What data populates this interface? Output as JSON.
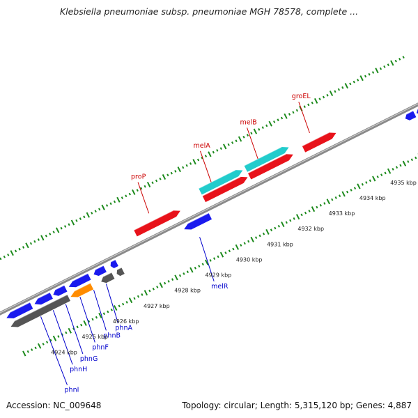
{
  "title": "Klebsiella pneumoniae subsp. pneumoniae MGH 78578, complete ...",
  "footer": {
    "accession": "Accession: NC_009648",
    "topology": "Topology: circular; Length: 5,315,120 bp; Genes: 4,887"
  },
  "colors": {
    "forward_gene": "#e8121a",
    "reverse_gene": "#1a1aee",
    "rna": "#22cccc",
    "highlight": "#ff8c00",
    "pseudo": "#555555",
    "tick": "#1c8a1c",
    "backbone": "#8a8a8a",
    "forward_label": "#cc0000",
    "reverse_label": "#0000cc"
  },
  "kbp_labels": [
    "4924 kbp",
    "4925 kbp",
    "4926 kbp",
    "4927 kbp",
    "4928 kbp",
    "4929 kbp",
    "4930 kbp",
    "4931 kbp",
    "4932 kbp",
    "4933 kbp",
    "4934 kbp",
    "4935 kbp"
  ],
  "forward_gene_labels": [
    {
      "name": "proP"
    },
    {
      "name": "melA"
    },
    {
      "name": "melB"
    },
    {
      "name": "groEL"
    }
  ],
  "reverse_gene_labels": [
    {
      "name": "phnI"
    },
    {
      "name": "phnH"
    },
    {
      "name": "phnG"
    },
    {
      "name": "phnF"
    },
    {
      "name": "phnB"
    },
    {
      "name": "phnA"
    },
    {
      "name": "melR"
    }
  ]
}
